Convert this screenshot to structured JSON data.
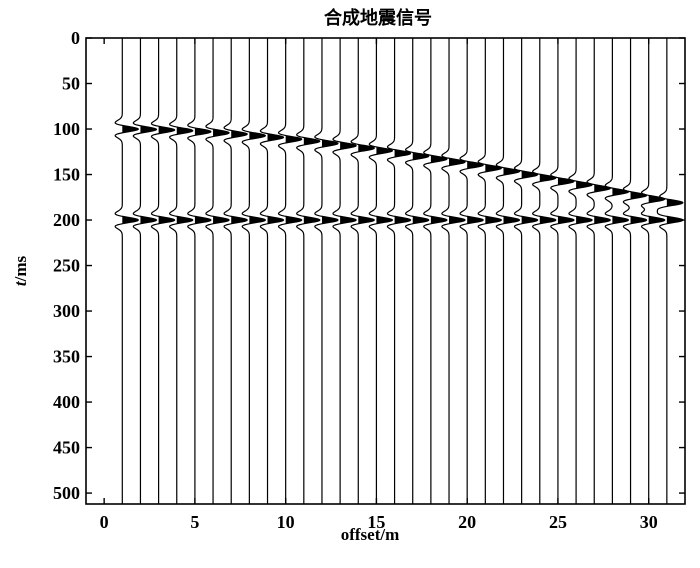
{
  "chart_data": {
    "type": "seismic-wiggle",
    "title": "合成地震信号",
    "xlabel": "offset/m",
    "ylabel_italic": "t",
    "ylabel_rest": "/ms",
    "xlim": [
      -1,
      32
    ],
    "ylim": [
      0,
      512
    ],
    "y_inverted": true,
    "xticks": [
      0,
      5,
      10,
      15,
      20,
      25,
      30
    ],
    "yticks": [
      0,
      50,
      100,
      150,
      200,
      250,
      300,
      350,
      400,
      450,
      500
    ],
    "grid": false,
    "traces": {
      "offsets": [
        1,
        2,
        3,
        4,
        5,
        6,
        7,
        8,
        9,
        10,
        11,
        12,
        13,
        14,
        15,
        16,
        17,
        18,
        19,
        20,
        21,
        22,
        23,
        24,
        25,
        26,
        27,
        28,
        29,
        30,
        31
      ]
    },
    "reflectors": [
      {
        "kind": "hyperbolic",
        "t0_ms": 100,
        "t_at_31m_ms": 181
      },
      {
        "kind": "flat",
        "t0_ms": 200
      }
    ],
    "colors": {
      "trace": "#000000",
      "fill": "#000000",
      "background": "#ffffff"
    }
  }
}
